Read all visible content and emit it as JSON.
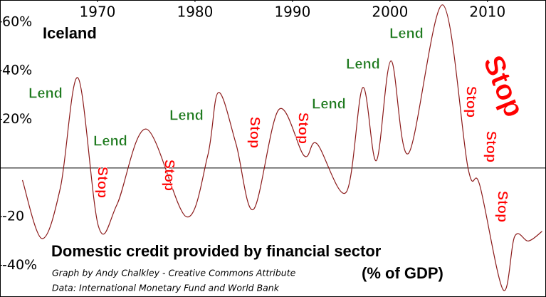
{
  "chart_data": {
    "type": "line",
    "title": "Domestic credit provided by financial sector",
    "subtitle": "(% of GDP)",
    "credits": [
      "Graph by Andy Chalkley - Creative Commons Attribute",
      "Data: International Monetary Fund and World Bank"
    ],
    "annotations": [
      "Iceland",
      "Lend",
      "Lend",
      "Lend",
      "Lend",
      "Lend",
      "Lend",
      "Stop",
      "Stop",
      "Stop",
      "Stop",
      "Stop",
      "Stop",
      "Stop",
      "Stop"
    ],
    "x": [
      1962.3,
      1964.3,
      1966.2,
      1968.0,
      1970.1,
      1972.0,
      1975.0,
      1979.1,
      1981.3,
      1982.4,
      1984.2,
      1986.0,
      1988.6,
      1991.2,
      1992.5,
      1995.5,
      1997.2,
      1998.6,
      2000.1,
      2001.9,
      2005.4,
      2008.0,
      2009.2,
      2011.6,
      2012.8,
      2014.2,
      2015.6
    ],
    "series": [
      {
        "name": "Iceland",
        "color": "#8b1a1a",
        "values": [
          -5,
          -29,
          -8,
          37,
          -24,
          -15,
          16,
          -20,
          5,
          31,
          10,
          -17,
          24,
          5,
          10,
          -10,
          33,
          3,
          44,
          6,
          67,
          0,
          -7,
          -50,
          -28,
          -30,
          -26
        ]
      }
    ],
    "xlim": [
      1960,
      2016
    ],
    "xticks": [
      1970,
      1980,
      1990,
      2000,
      2010
    ],
    "ylim": [
      -53,
      69
    ],
    "yticks": [
      {
        "value": 60,
        "label": "60%"
      },
      {
        "value": 40,
        "label": "40%"
      },
      {
        "value": 20,
        "label": "20%"
      },
      -20,
      {
        "value": -40,
        "label": "-40%"
      }
    ]
  }
}
